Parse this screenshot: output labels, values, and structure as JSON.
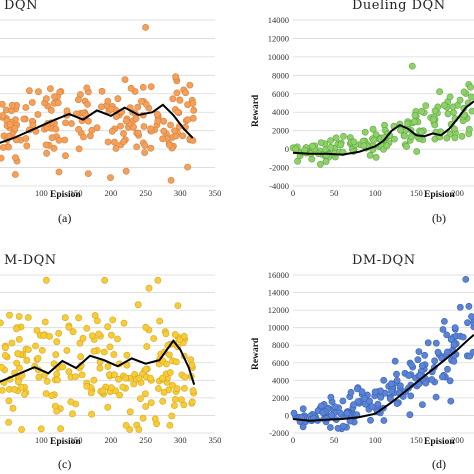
{
  "chart_data": [
    {
      "type": "scatter",
      "title": "DQN",
      "caption": "(a)",
      "xlabel": "Epision",
      "ylabel": "",
      "xlim": [
        0,
        350
      ],
      "ylim": [
        -4000,
        14000
      ],
      "x_ticks": [
        100,
        150,
        200,
        250,
        300,
        350
      ],
      "y_ticks": [],
      "grid": true,
      "colors": {
        "point": "#f4a05a",
        "point_edge": "#d9803a",
        "line": "#000000"
      },
      "series": [
        {
          "kind": "points",
          "count": 230,
          "x_range": [
            0,
            320
          ],
          "trend": "flat",
          "center": 2500,
          "spread": 4500,
          "max_point": [
            250,
            13200
          ]
        },
        {
          "kind": "line",
          "x": [
            0,
            30,
            60,
            90,
            120,
            140,
            160,
            180,
            200,
            220,
            240,
            260,
            275,
            290,
            305,
            318
          ],
          "y": [
            0,
            400,
            1200,
            2200,
            3200,
            3800,
            3200,
            4200,
            3600,
            4500,
            3700,
            4000,
            4800,
            3700,
            2200,
            1200
          ]
        }
      ]
    },
    {
      "type": "scatter",
      "title": "Dueling DQN",
      "caption": "(b)",
      "xlabel": "Epision",
      "ylabel": "Reward",
      "xlim": [
        0,
        220
      ],
      "ylim": [
        -4000,
        14000
      ],
      "x_ticks": [
        0,
        50,
        100,
        150,
        200
      ],
      "y_ticks": [
        -4000,
        -2000,
        0,
        2000,
        4000,
        6000,
        8000,
        10000,
        12000,
        14000
      ],
      "grid": true,
      "colors": {
        "point": "#8fd06a",
        "point_edge": "#5ea83e",
        "line": "#000000"
      },
      "series": [
        {
          "kind": "points",
          "count": 170,
          "x_range": [
            0,
            220
          ],
          "trend": "rising",
          "center_start": -300,
          "center_end": 5000,
          "spread": 2500,
          "max_point": [
            145,
            9000
          ]
        },
        {
          "kind": "line",
          "x": [
            0,
            20,
            40,
            60,
            80,
            100,
            110,
            120,
            130,
            140,
            150,
            160,
            170,
            180,
            190,
            200,
            210,
            220
          ],
          "y": [
            -400,
            -500,
            -500,
            -600,
            -300,
            300,
            900,
            2000,
            2600,
            2200,
            1500,
            1400,
            1700,
            1500,
            2200,
            3300,
            4500,
            5200
          ]
        }
      ]
    },
    {
      "type": "scatter",
      "title": "M-DQN",
      "caption": "(c)",
      "xlabel": "Epision",
      "ylabel": "",
      "xlim": [
        0,
        350
      ],
      "ylim": [
        -2000,
        16000
      ],
      "x_ticks": [
        100,
        150,
        200,
        250,
        300,
        350
      ],
      "y_ticks": [],
      "grid": true,
      "colors": {
        "point": "#f7cc3a",
        "point_edge": "#d8a818",
        "line": "#000000"
      },
      "series": [
        {
          "kind": "points",
          "count": 260,
          "x_range": [
            0,
            320
          ],
          "trend": "flat",
          "center": 5500,
          "spread": 6500,
          "max_point": [
            255,
            14500
          ]
        },
        {
          "kind": "line",
          "x": [
            0,
            30,
            60,
            90,
            110,
            130,
            150,
            170,
            190,
            210,
            230,
            250,
            270,
            290,
            300,
            312,
            320
          ],
          "y": [
            1500,
            3500,
            4500,
            5500,
            4800,
            6200,
            5400,
            6800,
            6300,
            5600,
            6500,
            5900,
            6300,
            8500,
            7500,
            5500,
            3500
          ]
        }
      ]
    },
    {
      "type": "scatter",
      "title": "DM-DQN",
      "caption": "(d)",
      "xlabel": "Epision",
      "ylabel": "Reward",
      "xlim": [
        0,
        220
      ],
      "ylim": [
        -2000,
        16000
      ],
      "x_ticks": [
        0,
        50,
        100,
        150,
        200
      ],
      "y_ticks": [
        -2000,
        0,
        2000,
        4000,
        6000,
        8000,
        10000,
        12000,
        14000,
        16000
      ],
      "grid": true,
      "colors": {
        "point": "#5b84d6",
        "point_edge": "#3a63b4",
        "line": "#000000"
      },
      "series": [
        {
          "kind": "points",
          "count": 200,
          "x_range": [
            0,
            220
          ],
          "trend": "rising",
          "center_start": -300,
          "center_end": 10000,
          "spread": 3500,
          "max_point": [
            210,
            15500
          ]
        },
        {
          "kind": "line",
          "x": [
            0,
            20,
            40,
            60,
            80,
            100,
            120,
            140,
            160,
            180,
            200,
            215,
            220
          ],
          "y": [
            -400,
            -600,
            -500,
            -400,
            -200,
            200,
            1500,
            3000,
            4500,
            6000,
            7500,
            8800,
            9200
          ]
        }
      ]
    }
  ]
}
